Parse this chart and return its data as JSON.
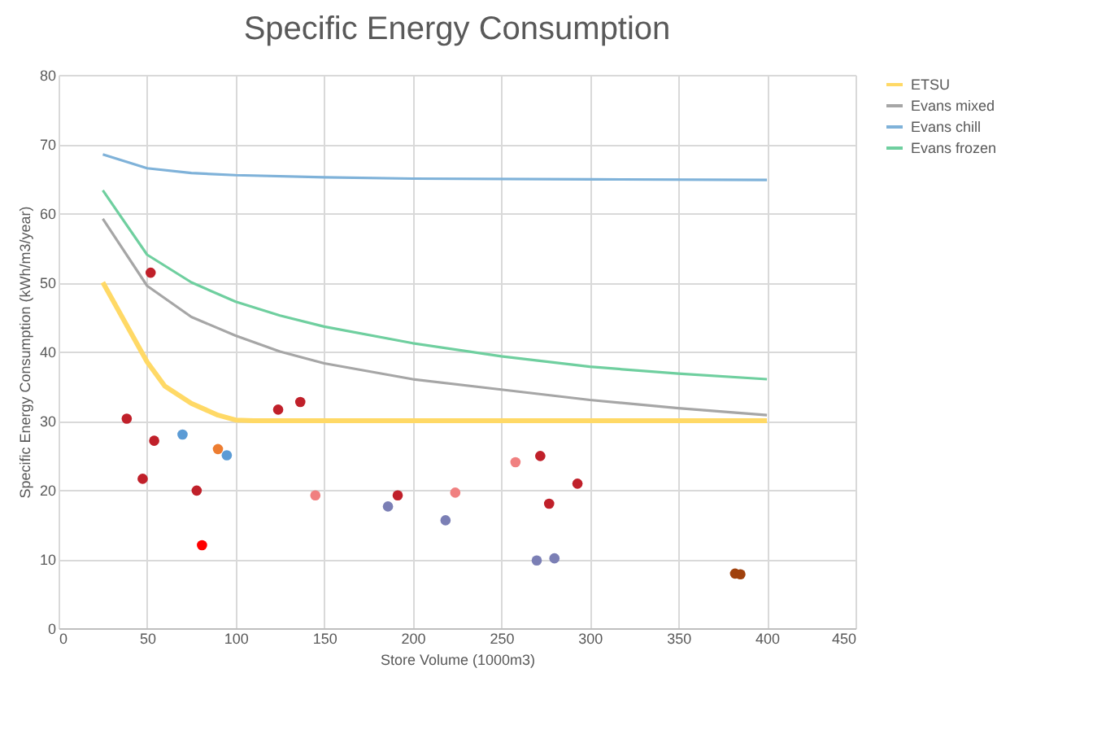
{
  "chart_data": {
    "type": "line",
    "title": "Specific Energy Consumption",
    "xlabel": "Store Volume (1000m3)",
    "ylabel": "Specific Energy Consumption (kWh/m3/year)",
    "xlim": [
      0,
      450
    ],
    "xticks": [
      0,
      50,
      100,
      150,
      200,
      250,
      300,
      350,
      400,
      450
    ],
    "ylim": [
      0,
      80
    ],
    "yticks": [
      0,
      10,
      20,
      30,
      40,
      50,
      60,
      70,
      80
    ],
    "grid": true,
    "legend": "top right",
    "marker": "none",
    "line_style": "solid",
    "series": [
      {
        "name": "ETSU",
        "color": "#ffd966",
        "x": [
          25,
          50,
          60,
          75,
          90,
          100,
          110,
          400
        ],
        "values": [
          50,
          38.5,
          35,
          32.5,
          30.8,
          30.1,
          30,
          30
        ]
      },
      {
        "name": "Evans mixed",
        "color": "#a6a6a6",
        "x": [
          25,
          50,
          75,
          100,
          125,
          150,
          200,
          250,
          300,
          350,
          400
        ],
        "values": [
          59.2,
          49.5,
          45,
          42.3,
          40,
          38.3,
          36,
          34.5,
          33,
          31.8,
          30.8
        ]
      },
      {
        "name": "Evans chill",
        "color": "#7fb2d9",
        "x": [
          25,
          50,
          75,
          100,
          150,
          200,
          300,
          400
        ],
        "values": [
          68.5,
          66.5,
          65.8,
          65.5,
          65.2,
          65,
          64.9,
          64.8
        ]
      },
      {
        "name": "Evans frozen",
        "color": "#6fcf9f",
        "x": [
          25,
          50,
          75,
          100,
          125,
          150,
          200,
          250,
          300,
          350,
          400
        ],
        "values": [
          63.3,
          54,
          50,
          47.2,
          45.2,
          43.6,
          41.2,
          39.3,
          37.8,
          36.8,
          36
        ]
      },
      {
        "type": "scatter",
        "marker": "circle",
        "x": [
          38.5,
          52,
          54,
          47.5,
          78,
          81,
          70,
          90,
          95,
          124,
          136.5,
          145,
          186,
          191.5,
          218.5,
          224,
          258,
          272,
          277,
          293,
          270,
          280,
          382,
          385
        ],
        "values": [
          30.3,
          51.4,
          27.1,
          21.6,
          19.9,
          12,
          28,
          25.9,
          25,
          31.6,
          32.7,
          19.2,
          17.6,
          19.2,
          15.6,
          19.6,
          24,
          24.9,
          18,
          20.9,
          9.8,
          10.1,
          7.9,
          7.8
        ],
        "colors": [
          "#c0202a",
          "#c0202a",
          "#c0202a",
          "#c0202a",
          "#c0202a",
          "#ff0000",
          "#5b9bd5",
          "#ed7d31",
          "#5b9bd5",
          "#c0202a",
          "#c0202a",
          "#f08080",
          "#7b7fb5",
          "#c0202a",
          "#7b7fb5",
          "#f08080",
          "#f08080",
          "#c0202a",
          "#c0202a",
          "#c0202a",
          "#7b7fb5",
          "#7b7fb5",
          "#a0410d",
          "#a0410d"
        ]
      }
    ]
  }
}
